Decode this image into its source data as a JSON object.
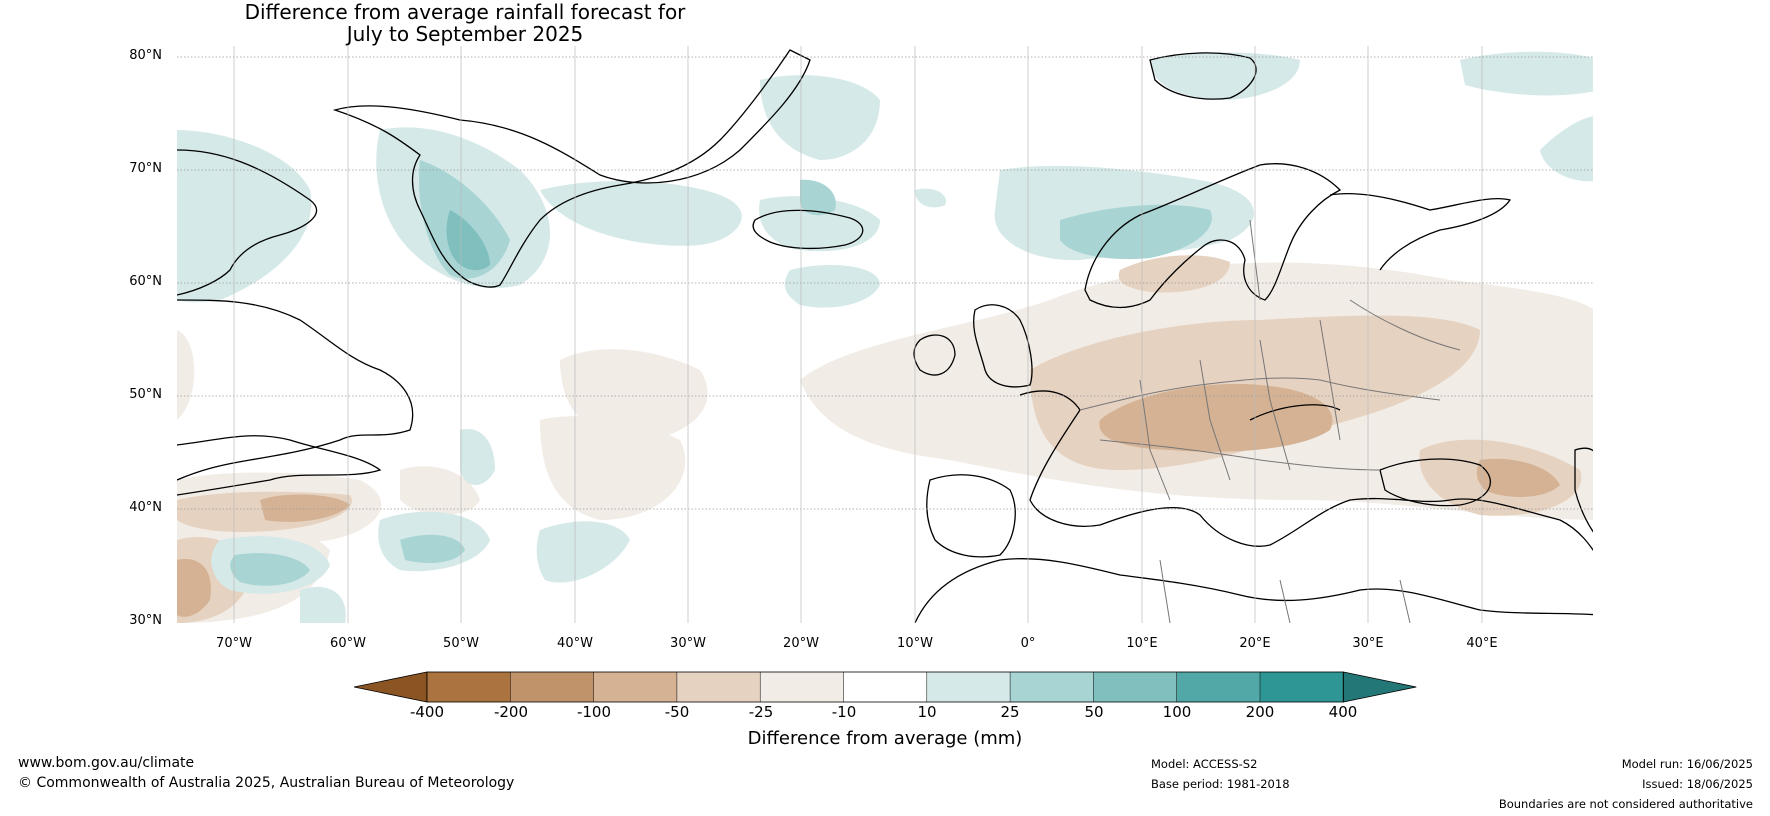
{
  "title": {
    "line1": "Difference from average rainfall forecast for",
    "line2": "July to September 2025"
  },
  "map": {
    "latitudes": [
      "80°N",
      "70°N",
      "60°N",
      "50°N",
      "40°N",
      "30°N"
    ],
    "longitudes": [
      "70°W",
      "60°W",
      "50°W",
      "40°W",
      "30°W",
      "20°W",
      "10°W",
      "0°",
      "10°E",
      "20°E",
      "30°E",
      "40°E"
    ]
  },
  "legend": {
    "title": "Difference from average (mm)",
    "ticks": [
      "-400",
      "-200",
      "-100",
      "-50",
      "-25",
      "-10",
      "10",
      "25",
      "50",
      "100",
      "200",
      "400"
    ],
    "colors": [
      "#8a5522",
      "#ab7340",
      "#c1936a",
      "#d4b293",
      "#e6d2c0",
      "#f2ece6",
      "#ffffff",
      "#d5e9e8",
      "#a8d4d3",
      "#7fc0be",
      "#52a8a6",
      "#2e9694",
      "#237776"
    ]
  },
  "footer": {
    "website": "www.bom.gov.au/climate",
    "copyright": "© Commonwealth of Australia 2025, Australian Bureau of Meteorology",
    "model": "Model: ACCESS-S2",
    "base_period": "Base period: 1981-2018",
    "model_run": "Model run: 16/06/2025",
    "issued": "Issued: 18/06/2025",
    "disclaimer": "Boundaries are not considered authoritative"
  }
}
